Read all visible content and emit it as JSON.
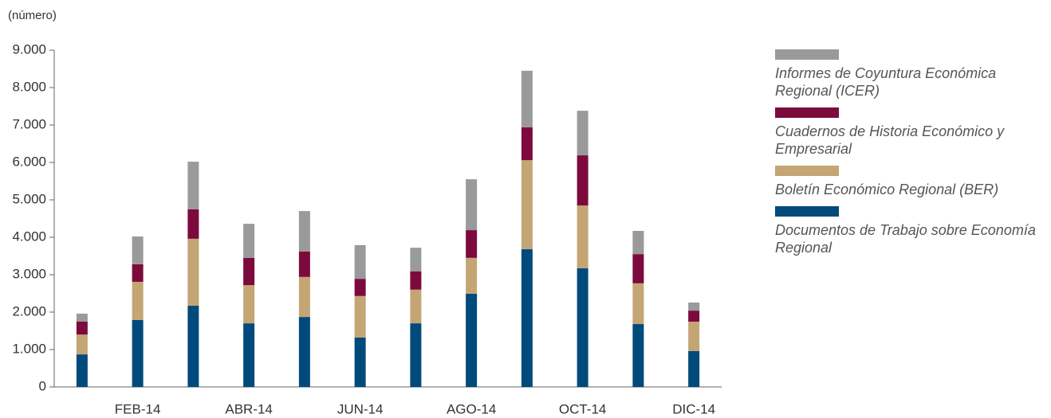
{
  "chart_data": {
    "type": "bar",
    "stacked": true,
    "y_label": "(número)",
    "categories": [
      null,
      "FEB-14",
      null,
      "ABR-14",
      null,
      "JUN-14",
      null,
      "AGO-14",
      null,
      "OCT-14",
      null,
      "DIC-14"
    ],
    "series": [
      {
        "name": "Documentos de Trabajo sobre Economía Regional",
        "color": "#004a7c",
        "values": [
          870,
          1790,
          2170,
          1700,
          1870,
          1320,
          1700,
          2490,
          3680,
          3170,
          1680,
          960
        ]
      },
      {
        "name": "Boletín Económico Regional (BER)",
        "color": "#c4a574",
        "values": [
          530,
          1020,
          1790,
          1020,
          1070,
          1110,
          900,
          960,
          2380,
          1680,
          1090,
          785
        ]
      },
      {
        "name": "Cuadernos de Historia Económico y Empresarial",
        "color": "#7d0a3c",
        "values": [
          345,
          470,
          785,
          730,
          680,
          460,
          490,
          740,
          880,
          1340,
          780,
          295
        ]
      },
      {
        "name": "Informes de Coyuntura Económica Regional (ICER)",
        "color": "#9a9a9b",
        "values": [
          215,
          740,
          1275,
          910,
          1080,
          900,
          630,
          1360,
          1510,
          1190,
          620,
          215
        ]
      }
    ],
    "ylim": [
      0,
      9000
    ],
    "yticks": [
      0,
      {
        "value": 1000,
        "label": "1.000"
      },
      {
        "value": 2000,
        "label": "2.000"
      },
      {
        "value": 3000,
        "label": "3.000"
      },
      {
        "value": 4000,
        "label": "4.000"
      },
      {
        "value": 5000,
        "label": "5.000"
      },
      {
        "value": 6000,
        "label": "6.000"
      },
      {
        "value": 7000,
        "label": "7.000"
      },
      {
        "value": 8000,
        "label": "8.000"
      },
      {
        "value": 9000,
        "label": "9.000"
      }
    ],
    "grid": false,
    "legend": "right"
  }
}
